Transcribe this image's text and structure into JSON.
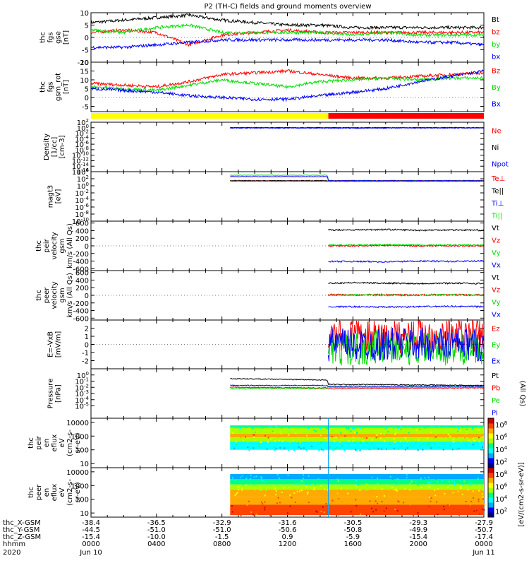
{
  "title": "P2 (TH-C) fields and ground moments overview",
  "colors": {
    "black": "#000000",
    "red": "#ff0000",
    "green": "#00dd00",
    "blue": "#0000ff",
    "yellow": "#ffff00"
  },
  "chart_data": [
    {
      "type": "line",
      "panel": "fgs-gse",
      "ylabel_lines": [
        "thc",
        "fgs",
        "gse",
        "[nT]"
      ],
      "ylim": [
        -10,
        10
      ],
      "yticks": [
        "10",
        "5",
        "0",
        "-5",
        "-10"
      ],
      "legend": [
        {
          "name": "Bt",
          "color": "#000000"
        },
        {
          "name": "bz",
          "color": "#ff0000"
        },
        {
          "name": "by",
          "color": "#00dd00"
        },
        {
          "name": "bx",
          "color": "#0000ff"
        }
      ],
      "x_hours": [
        0,
        2,
        4,
        6,
        8,
        10,
        12,
        14,
        16,
        18,
        20,
        22,
        24
      ],
      "series": [
        {
          "name": "Bt",
          "values": [
            6,
            7,
            8,
            9,
            7,
            6,
            5,
            5,
            4,
            4,
            4,
            4,
            4
          ]
        },
        {
          "name": "bz",
          "values": [
            2,
            3,
            2,
            -3,
            1,
            2,
            3,
            2,
            2,
            2,
            2,
            2,
            2
          ]
        },
        {
          "name": "by",
          "values": [
            3,
            2,
            4,
            5,
            2,
            2,
            2,
            2,
            1,
            2,
            1,
            1,
            1
          ]
        },
        {
          "name": "bx",
          "values": [
            -4,
            -4,
            -3,
            -2,
            -1,
            -1,
            -1,
            -1,
            -1,
            -1,
            -2,
            -2,
            -3
          ]
        }
      ]
    },
    {
      "type": "line",
      "panel": "fgs-gsm-rot",
      "ylabel_lines": [
        "thc",
        "fgs",
        "gsm_rot",
        "[nT]"
      ],
      "ylim": [
        -8,
        20
      ],
      "yticks": [
        "20",
        "15",
        "10",
        "5",
        "0",
        "-5"
      ],
      "legend": [
        {
          "name": "Bz",
          "color": "#ff0000"
        },
        {
          "name": "By",
          "color": "#00dd00"
        },
        {
          "name": "Bx",
          "color": "#0000ff"
        }
      ],
      "x_hours": [
        0,
        2,
        4,
        6,
        8,
        10,
        12,
        14,
        16,
        18,
        20,
        22,
        24
      ],
      "series": [
        {
          "name": "Bz",
          "values": [
            8,
            7,
            6,
            9,
            13,
            14,
            15,
            13,
            11,
            11,
            12,
            13,
            14
          ]
        },
        {
          "name": "By",
          "values": [
            6,
            5,
            4,
            7,
            10,
            8,
            6,
            9,
            10,
            11,
            10,
            11,
            11
          ]
        },
        {
          "name": "Bx",
          "values": [
            5,
            4,
            3,
            1,
            0,
            -1,
            -1,
            1,
            3,
            5,
            9,
            12,
            15
          ]
        }
      ],
      "status_bar": {
        "yellow_until_hour": 14.5,
        "red_from_hour": 14.5
      }
    },
    {
      "type": "line",
      "panel": "density",
      "ylabel_lines": [
        "Density",
        "[1/cc]",
        "[cm-3]"
      ],
      "ylog": true,
      "ylim_exp": [
        -16,
        2
      ],
      "yticks": [
        "10^2",
        "10^0",
        "10^-2",
        "10^-4",
        "10^-6",
        "10^-8",
        "10^-10",
        "10^-12",
        "10^-14",
        "10^-16"
      ],
      "legend": [
        {
          "name": "Ne",
          "color": "#ff0000"
        },
        {
          "name": "Ni",
          "color": "#000000"
        },
        {
          "name": "Npot",
          "color": "#0000ff"
        }
      ],
      "x_hours": [
        8.5,
        12,
        16,
        20,
        24
      ],
      "series": [
        {
          "name": "Ne",
          "values": [
            1,
            1,
            1,
            1,
            1
          ]
        },
        {
          "name": "Ni",
          "values": [
            1,
            1,
            1,
            1,
            1
          ]
        },
        {
          "name": "Npot",
          "values": [
            0.8,
            0.8,
            0.7,
            0.8,
            0.8
          ]
        }
      ]
    },
    {
      "type": "line",
      "panel": "temperature",
      "ylabel_lines": [
        "magt3",
        "[eV]"
      ],
      "ylog": true,
      "ylim_exp": [
        -10,
        4
      ],
      "yticks": [
        "10^4",
        "10^2",
        "10^0",
        "10^-2",
        "10^-4",
        "10^-6",
        "10^-8",
        "10^-10"
      ],
      "legend": [
        {
          "name": "Te⊥",
          "color": "#ff0000"
        },
        {
          "name": "Te||",
          "color": "#000000"
        },
        {
          "name": "Ti⊥",
          "color": "#0000ff"
        },
        {
          "name": "Ti||",
          "color": "#00dd00"
        }
      ],
      "x_hours": [
        8.5,
        14.4,
        14.5,
        24
      ],
      "series": [
        {
          "name": "Ti||",
          "values": [
            1000,
            1000,
            30,
            30
          ]
        },
        {
          "name": "Ti⊥",
          "values": [
            400,
            400,
            30,
            30
          ]
        },
        {
          "name": "Te||",
          "values": [
            30,
            30,
            20,
            20
          ]
        },
        {
          "name": "Te⊥",
          "values": [
            20,
            20,
            20,
            20
          ]
        }
      ]
    },
    {
      "type": "line",
      "panel": "peir-velocity",
      "ylabel_lines": [
        "thc",
        "peir",
        "velocity",
        "gsm",
        "km/s (All Qs)"
      ],
      "ylim": [
        -650,
        650
      ],
      "yticks": [
        "600",
        "400",
        "200",
        "0",
        "-200",
        "-400",
        "-600"
      ],
      "legend": [
        {
          "name": "Vt",
          "color": "#000000"
        },
        {
          "name": "Vz",
          "color": "#ff0000"
        },
        {
          "name": "Vy",
          "color": "#00dd00"
        },
        {
          "name": "Vx",
          "color": "#0000ff"
        }
      ],
      "x_hours": [
        14.5,
        16,
        18,
        20,
        22,
        24
      ],
      "series": [
        {
          "name": "Vt",
          "values": [
            420,
            420,
            430,
            410,
            420,
            410
          ]
        },
        {
          "name": "Vz",
          "values": [
            0,
            0,
            10,
            0,
            0,
            0
          ]
        },
        {
          "name": "Vy",
          "values": [
            20,
            20,
            30,
            20,
            20,
            20
          ]
        },
        {
          "name": "Vx",
          "values": [
            -410,
            -410,
            -420,
            -400,
            -410,
            -400
          ]
        }
      ]
    },
    {
      "type": "line",
      "panel": "peer-velocity",
      "ylabel_lines": [
        "thc",
        "peer",
        "velocity",
        "gsm",
        "km/s (All Qs)"
      ],
      "ylim": [
        -650,
        650
      ],
      "yticks": [
        "600",
        "400",
        "200",
        "0",
        "-200",
        "-400",
        "-600"
      ],
      "legend": [
        {
          "name": "Vt",
          "color": "#000000"
        },
        {
          "name": "Vz",
          "color": "#ff0000"
        },
        {
          "name": "Vy",
          "color": "#00dd00"
        },
        {
          "name": "Vx",
          "color": "#0000ff"
        }
      ],
      "x_hours": [
        14.5,
        16,
        18,
        20,
        22,
        24
      ],
      "series": [
        {
          "name": "Vt",
          "values": [
            320,
            330,
            320,
            310,
            320,
            310
          ]
        },
        {
          "name": "Vz",
          "values": [
            20,
            10,
            20,
            10,
            20,
            10
          ]
        },
        {
          "name": "Vy",
          "values": [
            0,
            10,
            0,
            0,
            10,
            0
          ]
        },
        {
          "name": "Vx",
          "values": [
            -300,
            -300,
            -310,
            -300,
            -290,
            -300
          ]
        }
      ]
    },
    {
      "type": "line",
      "panel": "e-field",
      "ylabel_lines": [
        "E=-VxB",
        "[mV/m]"
      ],
      "ylim": [
        -3,
        3
      ],
      "yticks": [
        "2",
        "1",
        "0",
        "-1",
        "-2"
      ],
      "legend": [
        {
          "name": "Ez",
          "color": "#ff0000"
        },
        {
          "name": "Ey",
          "color": "#00dd00"
        },
        {
          "name": "Ex",
          "color": "#0000ff"
        }
      ],
      "x_hours": [
        14.5,
        16,
        18,
        20,
        22,
        24
      ],
      "series": [
        {
          "name": "Ez",
          "values": [
            0.9,
            1.0,
            0.8,
            1.2,
            1.0,
            1.1
          ]
        },
        {
          "name": "Ey",
          "values": [
            -0.5,
            -0.6,
            -0.3,
            -0.6,
            -0.5,
            -0.4
          ]
        },
        {
          "name": "Ex",
          "values": [
            0,
            0,
            0,
            0,
            0,
            0
          ]
        }
      ]
    },
    {
      "type": "line",
      "panel": "pressure",
      "ylabel_lines": [
        "Pressure",
        "[nPa]"
      ],
      "ylog": true,
      "ylim_exp": [
        -7,
        1
      ],
      "yticks": [
        "10^0",
        "10^-1",
        "10^-2",
        "10^-3",
        "10^-4",
        "10^-5"
      ],
      "legend": [
        {
          "name": "Pt",
          "color": "#000000"
        },
        {
          "name": "Pb",
          "color": "#ff0000"
        },
        {
          "name": "Pe",
          "color": "#00dd00"
        },
        {
          "name": "Pi",
          "color": "#0000ff"
        }
      ],
      "x_hours": [
        8.5,
        14.4,
        14.5,
        24
      ],
      "series": [
        {
          "name": "Pt",
          "values": [
            0.25,
            0.15,
            0.03,
            0.02
          ]
        },
        {
          "name": "Pb",
          "values": [
            0.01,
            0.008,
            0.006,
            0.008
          ]
        },
        {
          "name": "Pe",
          "values": [
            0.006,
            0.006,
            0.01,
            0.01
          ]
        },
        {
          "name": "Pi",
          "values": [
            0.02,
            0.02,
            0.015,
            0.015
          ]
        }
      ],
      "right_label": "(All Qs)"
    },
    {
      "type": "heatmap",
      "panel": "peir-en-eflux",
      "ylabel_lines": [
        "thc",
        "peir",
        "en",
        "eflux",
        "eV",
        "(cm2-s-",
        "sr-eV)"
      ],
      "ylog": true,
      "ylim": [
        5,
        20000
      ],
      "yticks": [
        "10000",
        "1000",
        "100",
        "10"
      ],
      "data_x_hours": [
        8.5,
        24
      ],
      "data_y_range": [
        100,
        6000
      ],
      "bands": [
        {
          "y_from": 4000,
          "y_to": 6000,
          "value_log": 4.2
        },
        {
          "y_from": 1500,
          "y_to": 4000,
          "value_log": 5.5
        },
        {
          "y_from": 800,
          "y_to": 1500,
          "value_log": 7.2
        },
        {
          "y_from": 400,
          "y_to": 800,
          "value_log": 5.8
        },
        {
          "y_from": 200,
          "y_to": 400,
          "value_log": 4.0
        },
        {
          "y_from": 100,
          "y_to": 200,
          "value_log": 3.6
        }
      ],
      "colorbar": {
        "label": "[eV/(cm2-s-sr-eV)]",
        "ticks": [
          "10^8",
          "10^6",
          "10^4",
          "10^2"
        ],
        "range_log": [
          1,
          9
        ]
      }
    },
    {
      "type": "heatmap",
      "panel": "peer-en-eflux",
      "ylabel_lines": [
        "thc",
        "peer",
        "en",
        "eflux",
        "eV",
        "(cm2-s-",
        "sr-eV)"
      ],
      "ylog": true,
      "ylim": [
        5,
        20000
      ],
      "yticks": [
        "10000",
        "1000",
        "100",
        "10"
      ],
      "data_x_hours": [
        8.5,
        24
      ],
      "data_y_range": [
        7,
        7000
      ],
      "bands": [
        {
          "y_from": 3000,
          "y_to": 7000,
          "value_log": 3.2
        },
        {
          "y_from": 1200,
          "y_to": 3000,
          "value_log": 4.5
        },
        {
          "y_from": 500,
          "y_to": 1200,
          "value_log": 5.8
        },
        {
          "y_from": 150,
          "y_to": 500,
          "value_log": 6.8
        },
        {
          "y_from": 40,
          "y_to": 150,
          "value_log": 7.6
        },
        {
          "y_from": 7,
          "y_to": 40,
          "value_log": 8.4
        }
      ],
      "colorbar": {
        "label": "[eV/(cm2-s-sr-eV)]",
        "ticks": [
          "10^8",
          "10^6",
          "10^4",
          "10^2"
        ],
        "range_log": [
          1,
          9
        ]
      }
    }
  ],
  "xaxis": {
    "row_labels": [
      "thc_X-GSM",
      "thc_Y-GSM",
      "thc_Z-GSM",
      "hhmm",
      "2020"
    ],
    "tick_hours": [
      0,
      4,
      8,
      12,
      16,
      20,
      24
    ],
    "x_gsm": [
      "-38.4",
      "-36.5",
      "-32.9",
      "-31.6",
      "-30.5",
      "-29.3",
      "-27.9"
    ],
    "y_gsm": [
      "-44.5",
      "-51.0",
      "-51.0",
      "-50.6",
      "-50.8",
      "-49.9",
      "-50.7"
    ],
    "z_gsm": [
      "-15.4",
      "-10.0",
      "-1.5",
      "0.9",
      "-5.9",
      "-15.4",
      "-17.4"
    ],
    "hhmm": [
      "0000",
      "0400",
      "0800",
      "1200",
      "1600",
      "2000",
      "0000"
    ],
    "dates": [
      {
        "hour": 0,
        "label": "Jun 10"
      },
      {
        "hour": 24,
        "label": "Jun 11"
      }
    ]
  }
}
